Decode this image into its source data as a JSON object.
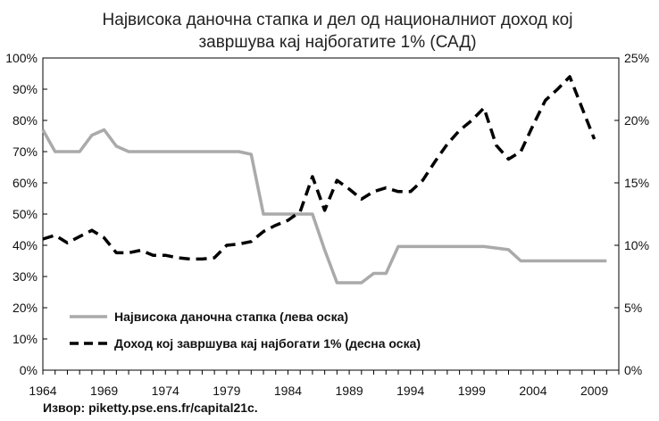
{
  "chart_data": {
    "type": "line",
    "title_line1": "Највисока даночна стапка и дел од националниот доход кој",
    "title_line2": "завршува кај најбогатите 1% (САД)",
    "x_ticks": [
      "1964",
      "1969",
      "1974",
      "1979",
      "1984",
      "1989",
      "1994",
      "1999",
      "2004",
      "2009"
    ],
    "y_left_ticks": [
      "0%",
      "10%",
      "20%",
      "30%",
      "40%",
      "50%",
      "60%",
      "70%",
      "80%",
      "90%",
      "100%"
    ],
    "y_right_ticks": [
      "0%",
      "5%",
      "10%",
      "15%",
      "20%",
      "25%"
    ],
    "xlim": [
      1964,
      2011
    ],
    "ylim_left": [
      0,
      100
    ],
    "ylim_right": [
      0,
      25
    ],
    "legend_position": "bottom-left",
    "source": "Извор: piketty.pse.ens.fr/capital21c.",
    "colors": {
      "tax": "#aaaaaa",
      "income": "#000000"
    },
    "series": [
      {
        "name": "Највисока даночна стапка (лева оска)",
        "axis": "left",
        "style": "solid",
        "x": [
          1964,
          1965,
          1966,
          1967,
          1968,
          1969,
          1970,
          1971,
          1972,
          1973,
          1974,
          1975,
          1976,
          1977,
          1978,
          1979,
          1980,
          1981,
          1982,
          1983,
          1984,
          1985,
          1986,
          1987,
          1988,
          1989,
          1990,
          1991,
          1992,
          1993,
          1994,
          1995,
          1996,
          1997,
          1998,
          1999,
          2000,
          2001,
          2002,
          2003,
          2004,
          2005,
          2006,
          2007,
          2008,
          2009,
          2010
        ],
        "values": [
          77,
          70,
          70,
          70,
          75.25,
          77,
          71.75,
          70,
          70,
          70,
          70,
          70,
          70,
          70,
          70,
          70,
          70,
          69.13,
          50,
          50,
          50,
          50,
          50,
          38.5,
          28,
          28,
          28,
          31,
          31,
          39.6,
          39.6,
          39.6,
          39.6,
          39.6,
          39.6,
          39.6,
          39.6,
          39.1,
          38.6,
          35,
          35,
          35,
          35,
          35,
          35,
          35,
          35
        ]
      },
      {
        "name": "Доход кој завршува кај најбогати 1% (десна оска)",
        "axis": "right",
        "style": "dashed",
        "x": [
          1964,
          1965,
          1966,
          1967,
          1968,
          1969,
          1970,
          1971,
          1972,
          1973,
          1974,
          1975,
          1976,
          1977,
          1978,
          1979,
          1980,
          1981,
          1982,
          1983,
          1984,
          1985,
          1986,
          1987,
          1988,
          1989,
          1990,
          1991,
          1992,
          1993,
          1994,
          1995,
          1996,
          1997,
          1998,
          1999,
          2000,
          2001,
          2002,
          2003,
          2004,
          2005,
          2006,
          2007,
          2008,
          2009
        ],
        "values": [
          10.5,
          10.8,
          10.2,
          10.7,
          11.2,
          10.6,
          9.4,
          9.4,
          9.6,
          9.2,
          9.2,
          9.0,
          8.9,
          8.9,
          9.0,
          10.0,
          10.1,
          10.3,
          11.1,
          11.6,
          12.0,
          12.7,
          15.5,
          12.8,
          15.2,
          14.5,
          13.7,
          14.3,
          14.6,
          14.3,
          14.3,
          15.2,
          16.7,
          18.1,
          19.2,
          20.0,
          21.0,
          18.0,
          16.9,
          17.5,
          19.6,
          21.6,
          22.5,
          23.5,
          21.0,
          18.5
        ]
      }
    ]
  }
}
